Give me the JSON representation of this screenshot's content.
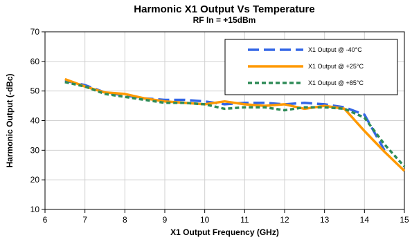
{
  "chart_data": {
    "type": "line",
    "title": "Harmonic X1 Output Vs Temperature",
    "subtitle": "RF In = +15dBm",
    "xlabel": "X1 Output Frequency (GHz)",
    "ylabel": "Harmonic Output (-dBc)",
    "xlim": [
      6,
      15
    ],
    "ylim": [
      10,
      70
    ],
    "xticks": [
      6,
      7,
      8,
      9,
      10,
      11,
      12,
      13,
      14,
      15
    ],
    "yticks": [
      10,
      20,
      30,
      40,
      50,
      60,
      70
    ],
    "grid": true,
    "legend_position": "top-right",
    "series": [
      {
        "name": "X1 Output @ -40°C",
        "color": "#3366e6",
        "dash": "long-dash",
        "x": [
          6.5,
          7.0,
          7.5,
          8.0,
          8.5,
          9.0,
          9.5,
          10.0,
          10.5,
          11.0,
          11.5,
          12.0,
          12.5,
          13.0,
          13.5,
          14.0,
          14.5
        ],
        "y": [
          53.5,
          52.0,
          49.5,
          48.5,
          47.5,
          47.0,
          47.0,
          46.5,
          45.5,
          46.0,
          46.0,
          45.5,
          46.0,
          45.5,
          44.5,
          42.0,
          30.0
        ]
      },
      {
        "name": "X1 Output @ +25°C",
        "color": "#ff9900",
        "dash": "solid",
        "x": [
          6.5,
          7.0,
          7.5,
          8.0,
          8.5,
          9.0,
          9.5,
          10.0,
          10.5,
          11.0,
          11.5,
          12.0,
          12.5,
          13.0,
          13.5,
          14.0,
          14.5,
          15.0
        ],
        "y": [
          54.0,
          51.5,
          49.5,
          49.0,
          47.5,
          46.5,
          46.0,
          45.5,
          46.5,
          45.5,
          45.0,
          45.5,
          44.0,
          45.0,
          44.0,
          36.5,
          29.5,
          23.0
        ]
      },
      {
        "name": "X1 Output @ +85°C",
        "color": "#2e8b57",
        "dash": "short-dash",
        "x": [
          6.5,
          7.0,
          7.5,
          8.0,
          8.5,
          9.0,
          9.5,
          10.0,
          10.5,
          11.0,
          11.5,
          12.0,
          12.5,
          13.0,
          13.5,
          14.0,
          14.5,
          15.0
        ],
        "y": [
          53.0,
          51.5,
          49.0,
          48.0,
          47.0,
          46.0,
          46.0,
          45.5,
          44.0,
          44.5,
          44.5,
          43.5,
          44.5,
          44.5,
          44.0,
          41.0,
          32.0,
          24.5
        ]
      }
    ]
  }
}
